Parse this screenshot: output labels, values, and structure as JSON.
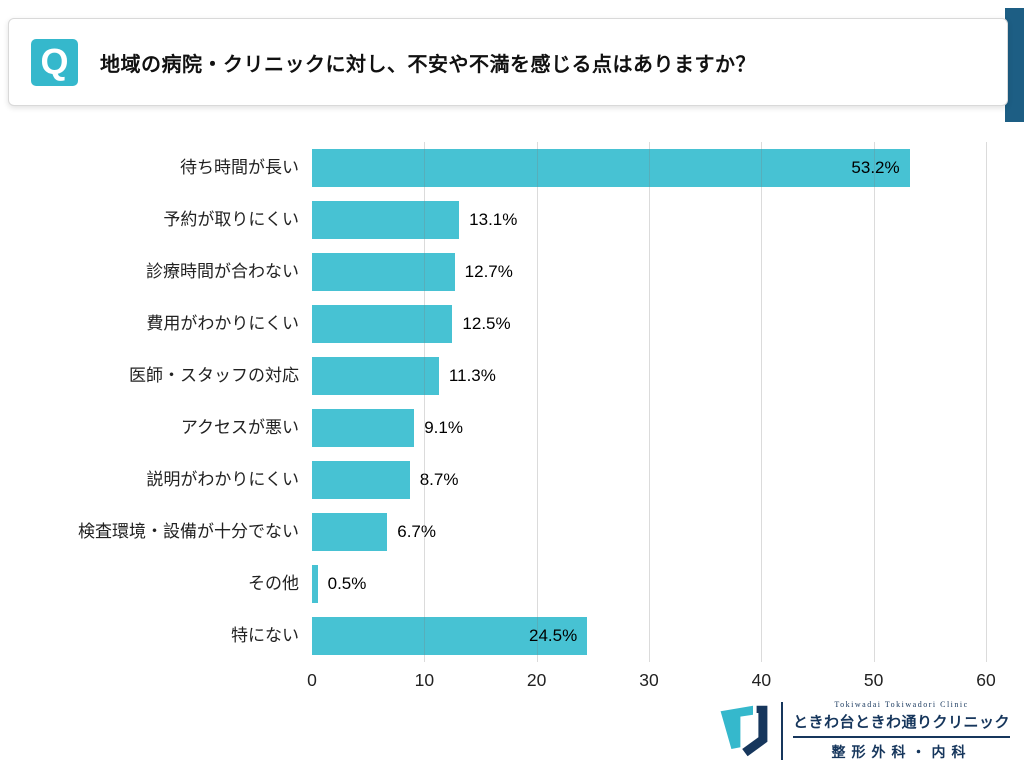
{
  "header": {
    "q_label": "Q",
    "question": "地域の病院・クリニックに対し、不安や不満を感じる点はありますか？"
  },
  "chart_data": {
    "type": "bar",
    "orientation": "horizontal",
    "title": "地域の病院・クリニックに対し、不安や不満を感じる点はありますか？",
    "categories": [
      "待ち時間が長い",
      "予約が取りにくい",
      "診療時間が合わない",
      "費用がわかりにくい",
      "医師・スタッフの対応",
      "アクセスが悪い",
      "説明がわかりにくい",
      "検査環境・設備が十分でない",
      "その他",
      "特にない"
    ],
    "values": [
      53.2,
      13.1,
      12.7,
      12.5,
      11.3,
      9.1,
      8.7,
      6.7,
      0.5,
      24.5
    ],
    "value_labels": [
      "53.2%",
      "13.1%",
      "12.7%",
      "12.5%",
      "11.3%",
      "9.1%",
      "8.7%",
      "6.7%",
      "0.5%",
      "24.5%"
    ],
    "xlabel": "",
    "ylabel": "",
    "xlim": [
      0,
      60
    ],
    "x_ticks": [
      0,
      10,
      20,
      30,
      40,
      50,
      60
    ],
    "grid": "vertical",
    "legend": "none",
    "bar_color": "#47c2d3"
  },
  "footer": {
    "clinic_en": "Tokiwadai Tokiwadori Clinic",
    "clinic_jp": "ときわ台ときわ通りクリニック",
    "department": "整形外科・内科"
  },
  "colors": {
    "bar": "#47c2d3",
    "header_accent_dark": "#1d5e84",
    "q_box_teal": "#35b8cc",
    "logo_navy": "#16365c",
    "logo_teal": "#35b8cc"
  }
}
